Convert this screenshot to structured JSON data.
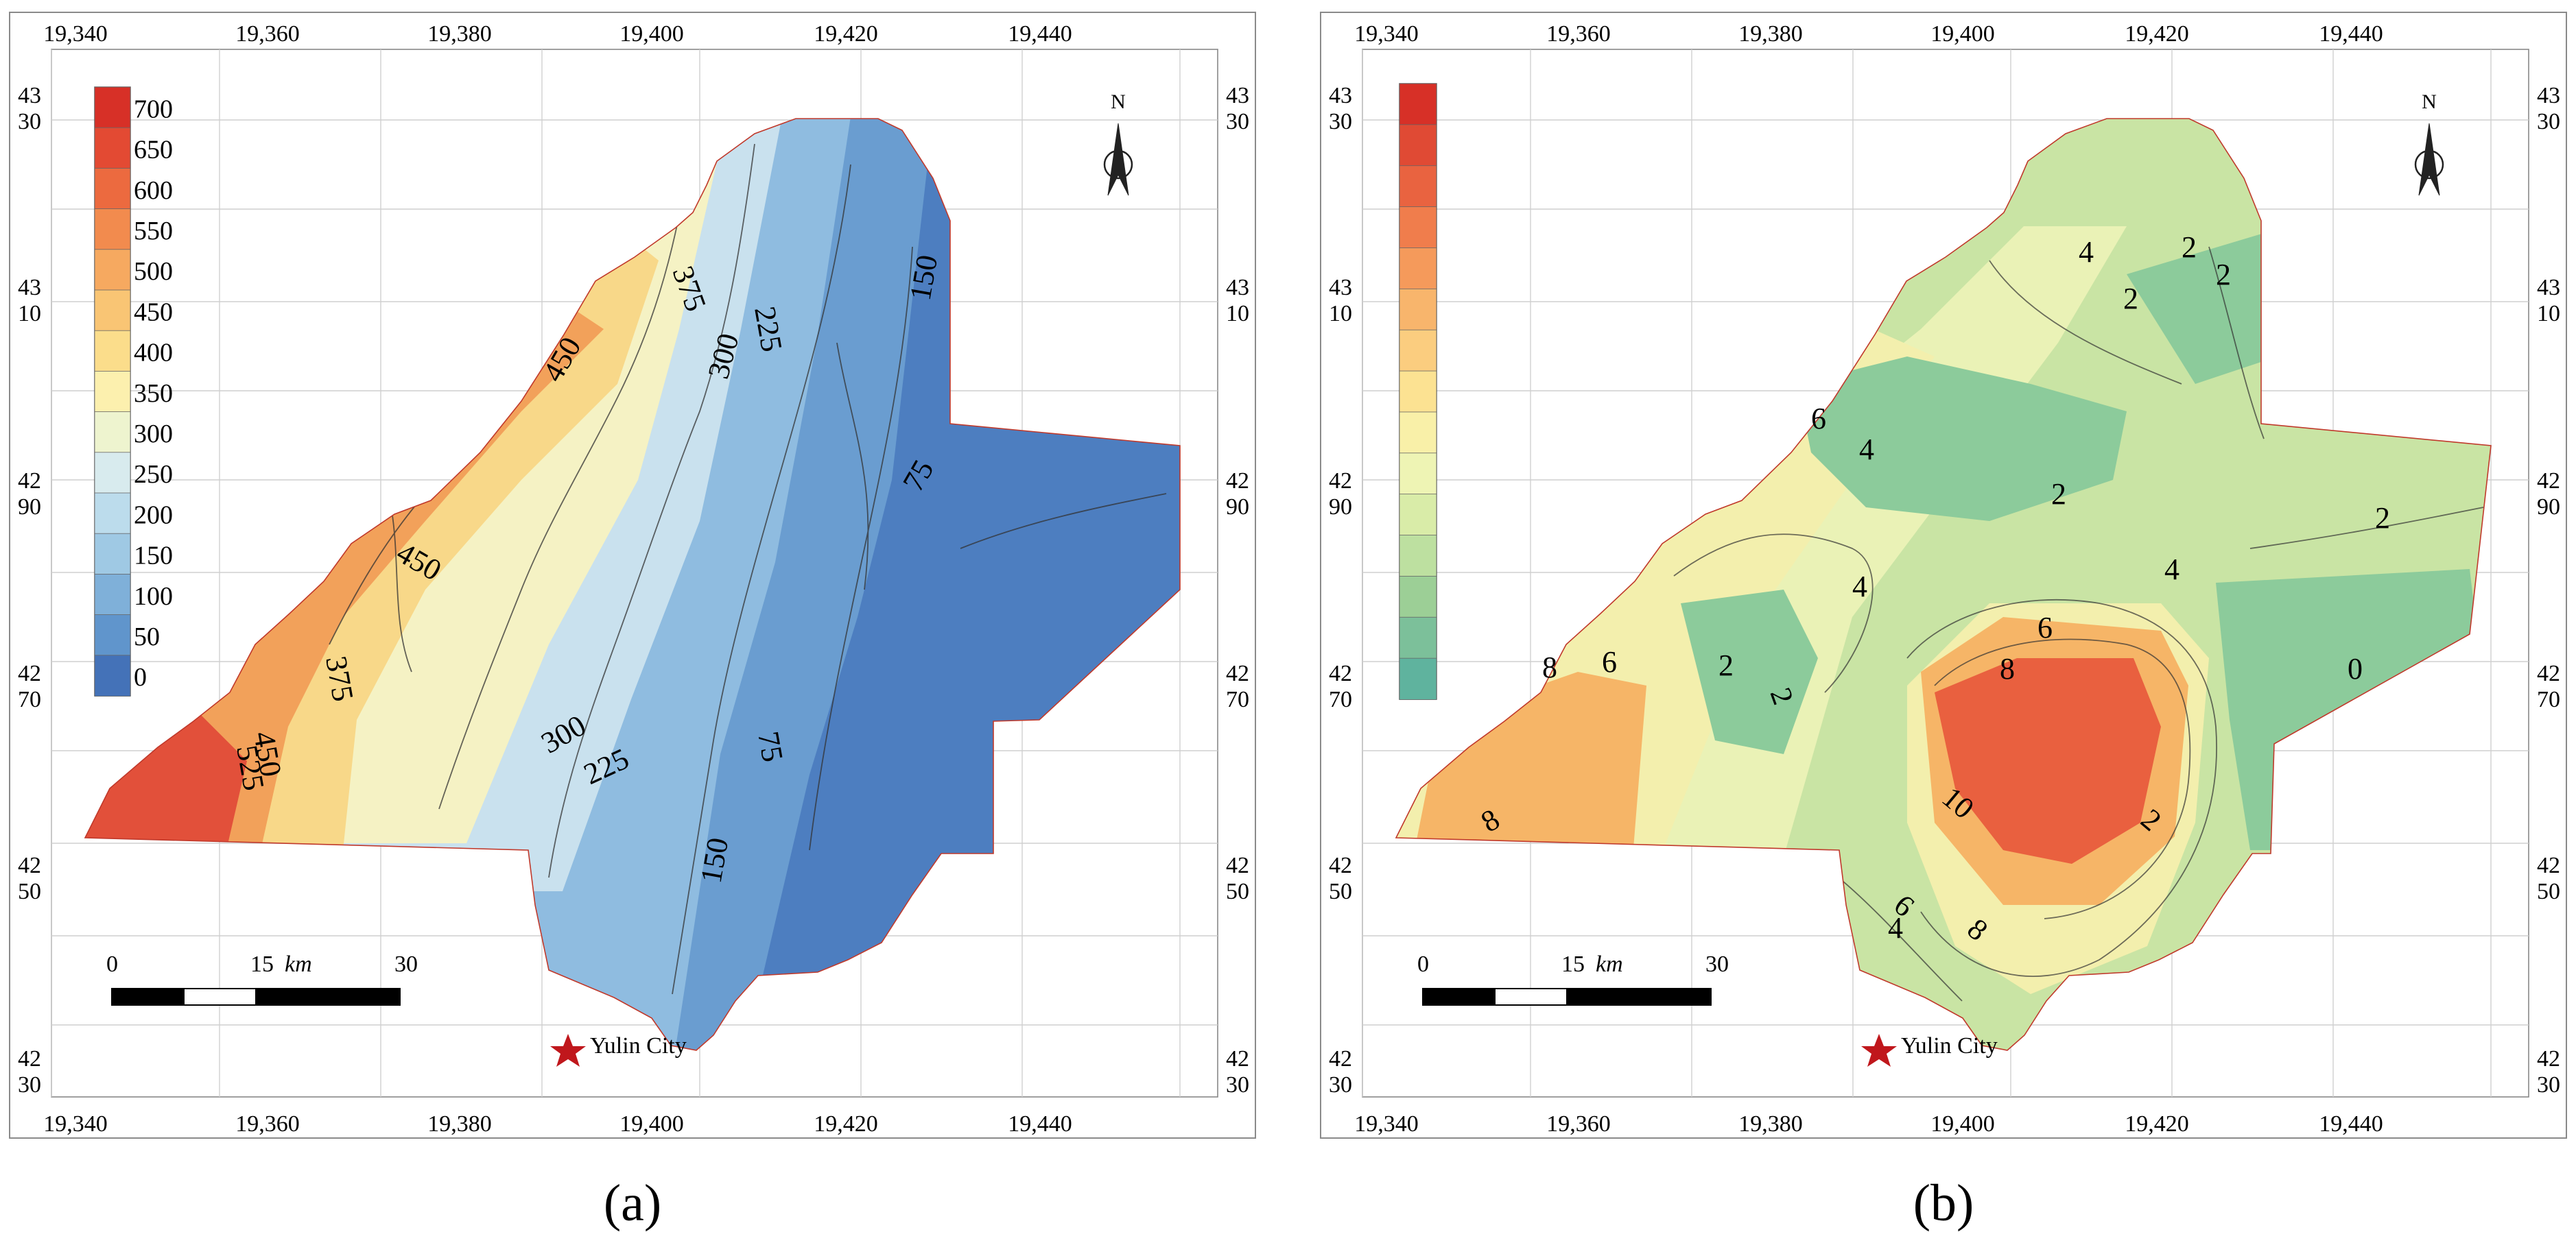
{
  "panels": [
    {
      "id": "a",
      "caption": "(a)",
      "x_ticks": [
        "19,340",
        "19,360",
        "19,380",
        "19,400",
        "19,420",
        "19,440"
      ],
      "y_ticks": [
        [
          "43",
          "30"
        ],
        [
          "43",
          "10"
        ],
        [
          "42",
          "90"
        ],
        [
          "42",
          "70"
        ],
        [
          "42",
          "50"
        ],
        [
          "42",
          "30"
        ]
      ],
      "legend_labels": [
        "700",
        "650",
        "600",
        "550",
        "500",
        "450",
        "400",
        "350",
        "300",
        "250",
        "200",
        "150",
        "100",
        "50",
        "0"
      ],
      "legend_colors": [
        "#d73027",
        "#e34a33",
        "#ec6a3f",
        "#f28b4e",
        "#f6a960",
        "#f9c574",
        "#fbdd8b",
        "#fcf0ae",
        "#eef4cf",
        "#d8ebee",
        "#bcdcec",
        "#9fc9e4",
        "#7fb0d9",
        "#6095cc",
        "#4472b8"
      ],
      "contour_labels": [
        "375",
        "450",
        "450",
        "375",
        "300",
        "225",
        "150",
        "75",
        "300",
        "225",
        "75",
        "150",
        "525",
        "450"
      ],
      "scale_bar": {
        "ticks": [
          "0",
          "15",
          "30"
        ],
        "unit": "km"
      },
      "north": "N",
      "city": "Yulin City"
    },
    {
      "id": "b",
      "caption": "(b)",
      "x_ticks": [
        "19,340",
        "19,360",
        "19,380",
        "19,400",
        "19,420",
        "19,440"
      ],
      "y_ticks": [
        [
          "43",
          "30"
        ],
        [
          "43",
          "10"
        ],
        [
          "42",
          "90"
        ],
        [
          "42",
          "70"
        ],
        [
          "42",
          "50"
        ],
        [
          "42",
          "30"
        ]
      ],
      "legend_colors": [
        "#d73027",
        "#e04a34",
        "#e96340",
        "#f07d4c",
        "#f59a5b",
        "#f8b56c",
        "#fbcd7f",
        "#fce292",
        "#f9f0a8",
        "#eef4b4",
        "#d9eca8",
        "#bde0a0",
        "#9ccf96",
        "#7cc09a",
        "#5fb39e"
      ],
      "contour_labels": [
        "4",
        "2",
        "2",
        "2",
        "6",
        "4",
        "2",
        "2",
        "4",
        "4",
        "6",
        "8",
        "6",
        "2",
        "2",
        "8",
        "10",
        "2",
        "0",
        "8",
        "6",
        "4",
        "8"
      ],
      "scale_bar": {
        "ticks": [
          "0",
          "15",
          "30"
        ],
        "unit": "km"
      },
      "north": "N",
      "city": "Yulin City"
    }
  ],
  "map_colors": {
    "panel_a": {
      "west_red": "#e2503a",
      "orange": "#f2a15a",
      "yellow": "#f8d889",
      "pale": "#f5f2c4",
      "light_blue": "#c9e1ee",
      "mid_blue": "#8fbce0",
      "blue": "#6a9dd0",
      "dark_blue": "#4d7ec0"
    },
    "panel_b": {
      "base_green": "#c9e4a4",
      "yellow": "#f3efad",
      "orange": "#f6b567",
      "red_core": "#e9603f",
      "dark_green": "#8ccb9b",
      "light": "#eaf2b6"
    }
  }
}
